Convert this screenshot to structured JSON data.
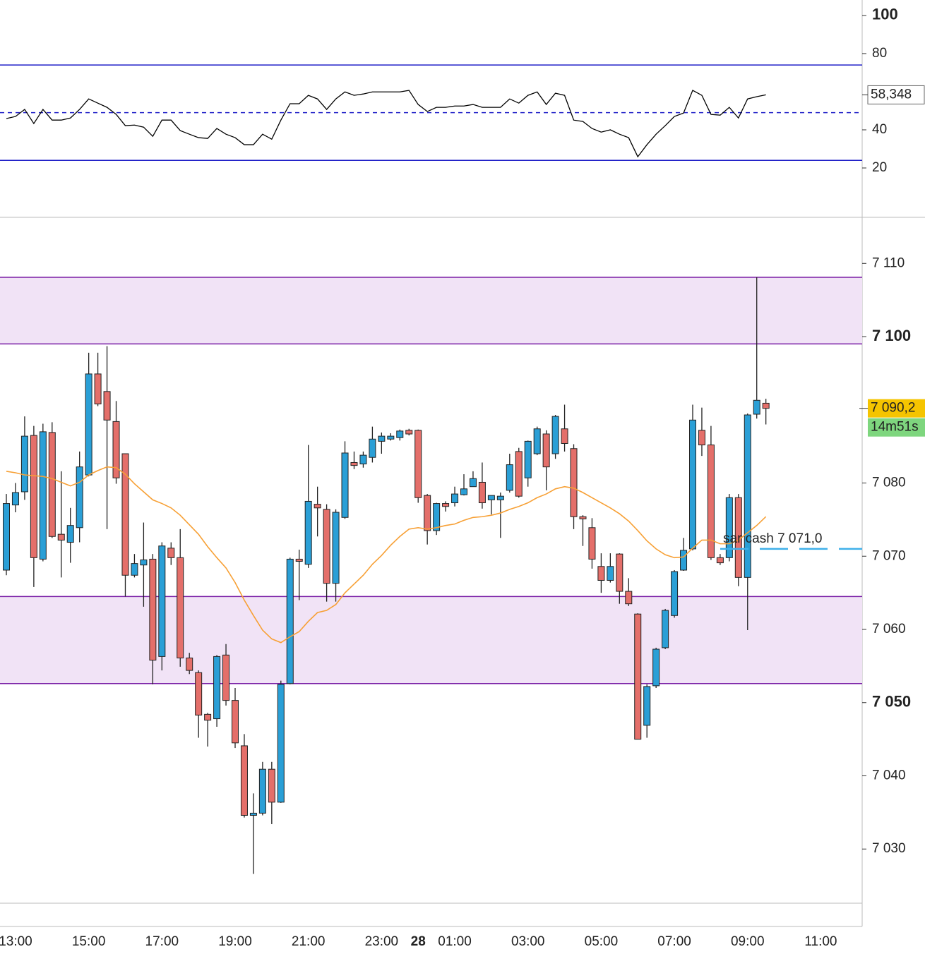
{
  "chart_data": [
    {
      "type": "line",
      "series": [
        {
          "color": "#000000",
          "values": [
            45.9,
            47.0,
            50.7,
            43.3,
            50.7,
            45.1,
            45.1,
            46.2,
            50.7,
            56.2,
            54.0,
            51.8,
            48.1,
            42.2,
            42.5,
            41.4,
            36.6,
            45.1,
            45.1,
            39.6,
            37.7,
            35.9,
            35.5,
            40.7,
            37.7,
            35.9,
            32.2,
            32.2,
            37.7,
            35.1,
            45.1,
            53.7,
            53.7,
            58.1,
            56.2,
            50.7,
            56.2,
            59.9,
            58.1,
            58.8,
            59.9,
            59.9,
            59.9,
            59.9,
            60.7,
            53.3,
            49.6,
            51.8,
            51.8,
            52.5,
            52.5,
            53.3,
            51.8,
            51.8,
            51.8,
            56.2,
            54.0,
            58.1,
            59.9,
            53.3,
            59.2,
            58.1,
            45.1,
            44.4,
            40.7,
            38.8,
            40.0,
            37.7,
            35.9,
            25.9,
            32.2,
            37.7,
            42.2,
            47.0,
            48.8,
            60.7,
            58.1,
            48.1,
            47.7,
            51.8,
            46.2,
            56.2,
            57.4,
            58.348,
            null,
            null,
            null,
            null,
            null,
            null
          ]
        }
      ],
      "ylim": [
        -5.9,
        108.1
      ],
      "yticks": [
        {
          "value": 100,
          "label": "100",
          "bold": true
        },
        80,
        40,
        20
      ],
      "hlines": [
        {
          "value": 74,
          "color": "#1f1fc8",
          "dashed": false
        },
        {
          "value": 49,
          "color": "#1f1fc8",
          "dashed": true
        },
        {
          "value": 24,
          "color": "#1f1fc8",
          "dashed": false
        }
      ],
      "current": {
        "value": 58.348,
        "label": "58,348"
      }
    },
    {
      "type": "candlestick",
      "categories": [
        null,
        "13:00",
        null,
        null,
        null,
        null,
        null,
        null,
        null,
        "15:00",
        null,
        null,
        null,
        null,
        null,
        null,
        null,
        "17:00",
        null,
        null,
        null,
        null,
        null,
        null,
        null,
        "19:00",
        null,
        null,
        null,
        null,
        null,
        null,
        null,
        "21:00",
        null,
        null,
        null,
        null,
        null,
        null,
        null,
        "23:00",
        null,
        null,
        null,
        "28",
        null,
        null,
        null,
        "01:00",
        null,
        null,
        null,
        null,
        null,
        null,
        null,
        "03:00",
        null,
        null,
        null,
        null,
        null,
        null,
        null,
        "05:00",
        null,
        null,
        null,
        null,
        null,
        null,
        null,
        "07:00",
        null,
        null,
        null,
        null,
        null,
        null,
        null,
        "09:00",
        null,
        null,
        null,
        null,
        null,
        null,
        null,
        "11:00"
      ],
      "open": [
        7068.1,
        7077.0,
        7078.8,
        7086.5,
        7069.6,
        7086.9,
        7073.0,
        7071.9,
        7073.9,
        7081.1,
        7094.9,
        7092.5,
        7088.4,
        7084.0,
        7067.4,
        7068.8,
        7069.6,
        7056.3,
        7071.1,
        7069.8,
        7056.1,
        7054.1,
        7048.4,
        7047.8,
        7056.5,
        7050.3,
        7044.1,
        7034.6,
        7034.9,
        7040.9,
        7036.4,
        7052.6,
        7069.6,
        7068.9,
        7077.1,
        7076.4,
        7066.3,
        7075.3,
        7082.8,
        7082.6,
        7083.5,
        7085.7,
        7086.0,
        7086.2,
        7087.2,
        7087.2,
        7078.3,
        7073.5,
        7077.2,
        7077.3,
        7078.4,
        7079.5,
        7080.1,
        7077.7,
        7077.7,
        7079.0,
        7084.3,
        7080.7,
        7084.0,
        7086.7,
        7084.0,
        7087.4,
        7084.7,
        7075.4,
        7073.9,
        7068.6,
        7066.7,
        7070.3,
        7065.2,
        7062.1,
        7046.9,
        7052.3,
        7057.5,
        7061.9,
        7068.1,
        7071.0,
        7087.2,
        7085.2,
        7069.8,
        7069.8,
        7078.0,
        7067.1,
        7089.4,
        7090.9,
        null,
        null,
        null,
        null,
        null,
        null
      ],
      "high": [
        7078.5,
        7080.0,
        7089.1,
        7087.8,
        7088.1,
        7088.3,
        7081.6,
        7076.6,
        7084.3,
        7097.8,
        7097.8,
        7098.7,
        7091.2,
        7084.0,
        7070.3,
        7074.6,
        7070.3,
        7071.9,
        7071.9,
        7073.7,
        7056.8,
        7054.4,
        7048.6,
        7056.5,
        7058.0,
        7052.0,
        7045.7,
        7037.6,
        7041.9,
        7041.9,
        7053.0,
        7069.8,
        7070.9,
        7085.2,
        7079.5,
        7077.1,
        7076.4,
        7085.7,
        7084.3,
        7084.3,
        7087.7,
        7086.9,
        7086.8,
        7087.3,
        7087.4,
        7087.3,
        7078.5,
        7077.3,
        7077.5,
        7079.5,
        7081.2,
        7081.6,
        7082.8,
        7077.9,
        7078.7,
        7084.0,
        7084.8,
        7085.8,
        7087.7,
        7087.2,
        7089.3,
        7090.7,
        7085.3,
        7075.6,
        7075.2,
        7070.4,
        7070.4,
        7070.4,
        7067.0,
        7062.2,
        7052.5,
        7057.5,
        7062.8,
        7068.1,
        7072.5,
        7090.7,
        7090.3,
        7087.8,
        7070.3,
        7078.5,
        7078.5,
        7089.5,
        7108.1,
        7091.5,
        null,
        null,
        null,
        null,
        null,
        null
      ],
      "low": [
        7067.4,
        7076.0,
        7077.7,
        7065.8,
        7069.3,
        7072.5,
        7067.1,
        7069.1,
        7071.9,
        7080.9,
        7090.5,
        7073.7,
        7079.9,
        7064.5,
        7067.1,
        7063.1,
        7052.5,
        7054.4,
        7068.8,
        7054.9,
        7053.9,
        7045.2,
        7044.0,
        7046.7,
        7049.6,
        7043.8,
        7034.3,
        7026.6,
        7034.6,
        7033.4,
        7036.3,
        7052.5,
        7064.0,
        7068.4,
        7072.7,
        7063.8,
        7063.8,
        7075.1,
        7081.9,
        7082.1,
        7082.8,
        7084.0,
        7085.8,
        7085.8,
        7086.5,
        7077.3,
        7071.6,
        7072.9,
        7076.1,
        7076.8,
        7078.3,
        7079.7,
        7076.5,
        7075.7,
        7072.5,
        7078.7,
        7078.0,
        7079.5,
        7083.8,
        7079.0,
        7083.3,
        7084.3,
        7073.7,
        7071.4,
        7068.3,
        7065.0,
        7066.4,
        7063.5,
        7063.2,
        7045.0,
        7045.2,
        7052.0,
        7057.3,
        7061.6,
        7068.0,
        7070.8,
        7083.7,
        7069.5,
        7068.8,
        7069.3,
        7065.9,
        7059.9,
        7088.8,
        7088.0,
        null,
        null,
        null,
        null,
        null,
        null
      ],
      "close": [
        7077.2,
        7078.7,
        7086.4,
        7069.8,
        7087.0,
        7072.7,
        7072.2,
        7074.2,
        7082.2,
        7094.9,
        7090.8,
        7088.6,
        7080.7,
        7067.4,
        7069.0,
        7069.5,
        7055.8,
        7071.4,
        7069.8,
        7056.1,
        7054.4,
        7048.3,
        7047.6,
        7056.3,
        7050.3,
        7044.5,
        7034.6,
        7034.9,
        7040.9,
        7036.4,
        7052.5,
        7069.6,
        7069.3,
        7077.5,
        7076.6,
        7066.3,
        7076.0,
        7084.1,
        7082.4,
        7083.8,
        7086.0,
        7086.4,
        7086.4,
        7087.1,
        7086.7,
        7078.0,
        7073.5,
        7077.2,
        7076.8,
        7078.5,
        7079.2,
        7080.6,
        7077.3,
        7078.3,
        7078.2,
        7082.5,
        7078.2,
        7085.7,
        7087.4,
        7082.2,
        7089.1,
        7085.4,
        7075.4,
        7075.1,
        7069.6,
        7066.7,
        7068.6,
        7065.2,
        7063.5,
        7045.0,
        7052.2,
        7057.3,
        7062.6,
        7067.9,
        7070.8,
        7088.6,
        7085.2,
        7069.8,
        7069.1,
        7078.0,
        7067.1,
        7089.3,
        7091.3,
        7090.2,
        null,
        null,
        null,
        null,
        null,
        null
      ],
      "up_color": "#2a9fd6",
      "down_color": "#e46f6a",
      "overlay": {
        "color": "#f7a035",
        "values": [
          7081.6,
          7081.4,
          7081.1,
          7081.0,
          7080.9,
          7080.6,
          7080.1,
          7079.6,
          7080.1,
          7081.1,
          7081.7,
          7082.2,
          7082.1,
          7081.2,
          7079.9,
          7078.8,
          7077.7,
          7077.2,
          7076.6,
          7075.6,
          7074.3,
          7073.0,
          7071.3,
          7069.8,
          7068.4,
          7066.4,
          7064.0,
          7061.9,
          7059.9,
          7058.7,
          7058.2,
          7059.0,
          7059.7,
          7061.1,
          7062.3,
          7062.6,
          7063.4,
          7065.0,
          7066.2,
          7067.4,
          7068.9,
          7070.1,
          7071.5,
          7072.7,
          7073.7,
          7073.9,
          7073.7,
          7073.9,
          7074.2,
          7074.4,
          7074.9,
          7075.3,
          7075.4,
          7075.6,
          7075.9,
          7076.4,
          7076.8,
          7077.3,
          7078.0,
          7078.5,
          7079.2,
          7079.5,
          7079.3,
          7078.7,
          7078.0,
          7077.3,
          7076.6,
          7075.8,
          7074.8,
          7073.5,
          7072.1,
          7071.0,
          7070.2,
          7069.8,
          7069.9,
          7071.1,
          7072.2,
          7072.2,
          7071.7,
          7071.7,
          7072.2,
          7073.2,
          7074.2,
          7075.4,
          null,
          null,
          null,
          null,
          null,
          null
        ]
      },
      "zones": [
        {
          "from": 7099.0,
          "to": 7108.1
        },
        {
          "from": 7052.6,
          "to": 7064.5
        }
      ],
      "zone_color": "#f1e3f6",
      "zone_line_color": "#7a1fa6",
      "ylim": [
        7022.6,
        7116.1
      ],
      "yticks": [
        {
          "value": 7110,
          "label": "7 110"
        },
        {
          "value": 7100,
          "label": "7 100",
          "bold": true
        },
        {
          "value": 7080,
          "label": "7 080"
        },
        {
          "value": 7070,
          "label": "7 070"
        },
        {
          "value": 7060,
          "label": "7 060"
        },
        {
          "value": 7050,
          "label": "7 050",
          "bold": true
        },
        {
          "value": 7040,
          "label": "7 040"
        },
        {
          "value": 7030,
          "label": "7 030"
        }
      ],
      "current": {
        "value": 7090.2,
        "label": "7 090,2"
      },
      "countdown": "14m51s",
      "annotation": {
        "text": "sar cash 7 071,0",
        "value": 7071.0,
        "color": "#3fb0ea"
      }
    }
  ]
}
